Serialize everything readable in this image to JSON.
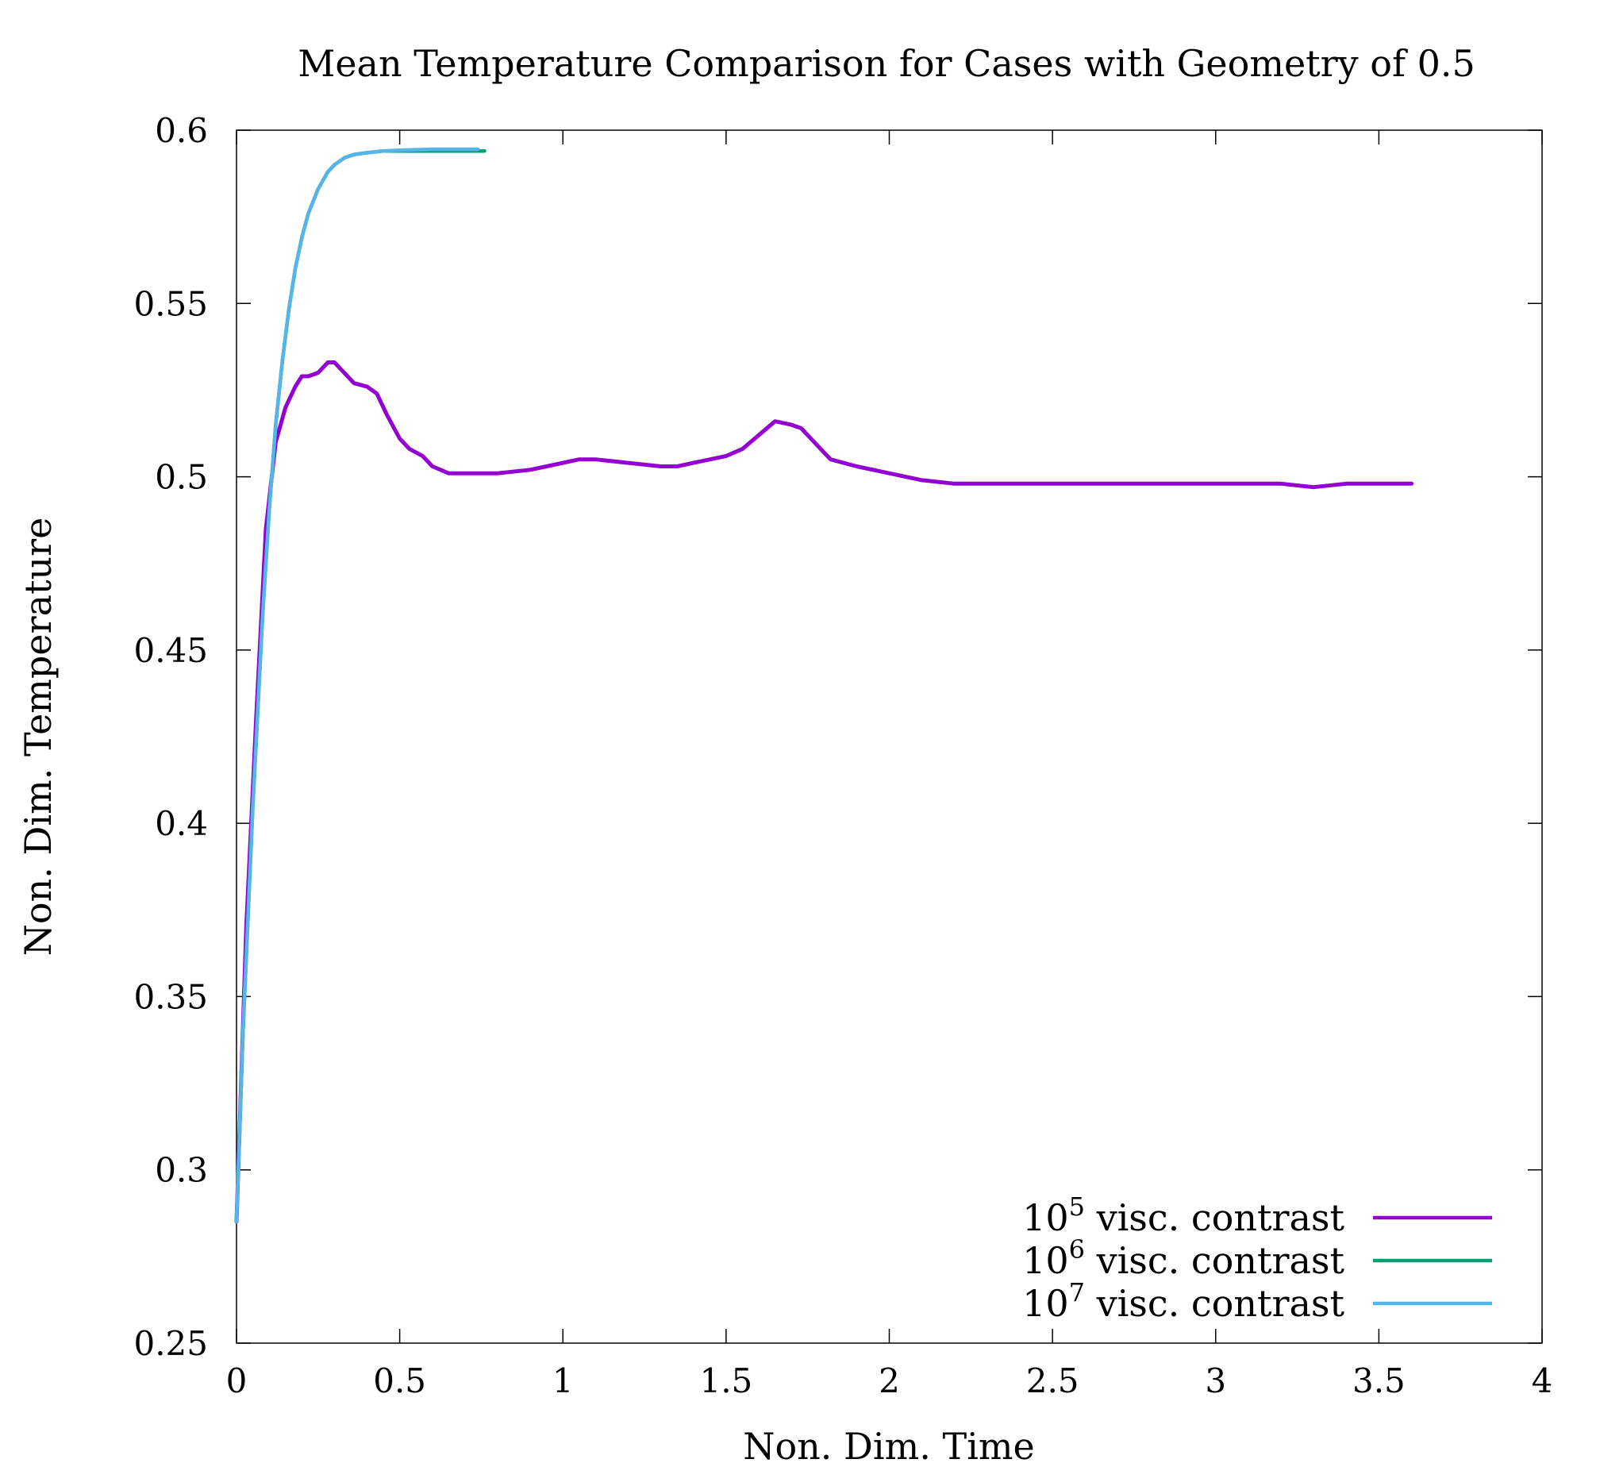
{
  "chart_data": {
    "type": "line",
    "title": "Mean Temperature Comparison for Cases with Geometry of 0.5",
    "xlabel": "Non. Dim. Time",
    "ylabel": "Non. Dim. Temperature",
    "xlim": [
      0,
      4
    ],
    "ylim": [
      0.25,
      0.6
    ],
    "xticks": [
      0,
      0.5,
      1,
      1.5,
      2,
      2.5,
      3,
      3.5,
      4
    ],
    "xtick_labels": [
      "0",
      "0.5",
      "1",
      "1.5",
      "2",
      "2.5",
      "3",
      "3.5",
      "4"
    ],
    "yticks": [
      0.25,
      0.3,
      0.35,
      0.4,
      0.45,
      0.5,
      0.55,
      0.6
    ],
    "ytick_labels": [
      "0.25",
      "0.3",
      "0.35",
      "0.4",
      "0.45",
      "0.5",
      "0.55",
      "0.6"
    ],
    "grid": false,
    "legend_position": "bottom-right",
    "series": [
      {
        "name_base": "10",
        "name_exp": "5",
        "name_rest": " visc. contrast",
        "color": "#9400d3",
        "x": [
          0,
          0.03,
          0.06,
          0.09,
          0.12,
          0.15,
          0.18,
          0.2,
          0.22,
          0.25,
          0.28,
          0.3,
          0.33,
          0.36,
          0.4,
          0.43,
          0.46,
          0.5,
          0.53,
          0.57,
          0.6,
          0.65,
          0.7,
          0.8,
          0.9,
          0.95,
          1.0,
          1.05,
          1.1,
          1.2,
          1.3,
          1.35,
          1.4,
          1.5,
          1.55,
          1.6,
          1.65,
          1.7,
          1.73,
          1.78,
          1.82,
          1.9,
          2.0,
          2.1,
          2.2,
          2.3,
          2.4,
          2.5,
          2.6,
          2.7,
          2.8,
          2.9,
          3.0,
          3.1,
          3.2,
          3.3,
          3.4,
          3.5,
          3.6
        ],
        "y": [
          0.285,
          0.37,
          0.43,
          0.485,
          0.51,
          0.52,
          0.526,
          0.529,
          0.529,
          0.53,
          0.533,
          0.533,
          0.53,
          0.527,
          0.526,
          0.524,
          0.518,
          0.511,
          0.508,
          0.506,
          0.503,
          0.501,
          0.501,
          0.501,
          0.502,
          0.503,
          0.504,
          0.505,
          0.505,
          0.504,
          0.503,
          0.503,
          0.504,
          0.506,
          0.508,
          0.512,
          0.516,
          0.515,
          0.514,
          0.509,
          0.505,
          0.503,
          0.501,
          0.499,
          0.498,
          0.498,
          0.498,
          0.498,
          0.498,
          0.498,
          0.498,
          0.498,
          0.498,
          0.498,
          0.498,
          0.497,
          0.498,
          0.498,
          0.498
        ]
      },
      {
        "name_base": "10",
        "name_exp": "6",
        "name_rest": " visc. contrast",
        "color": "#009e73",
        "x": [
          0,
          0.02,
          0.05,
          0.08,
          0.1,
          0.12,
          0.14,
          0.16,
          0.18,
          0.2,
          0.22,
          0.25,
          0.28,
          0.3,
          0.33,
          0.36,
          0.4,
          0.45,
          0.5,
          0.6,
          0.7,
          0.76
        ],
        "y": [
          0.285,
          0.34,
          0.405,
          0.46,
          0.49,
          0.515,
          0.533,
          0.548,
          0.56,
          0.569,
          0.576,
          0.583,
          0.588,
          0.59,
          0.592,
          0.593,
          0.5935,
          0.594,
          0.594,
          0.594,
          0.594,
          0.594
        ]
      },
      {
        "name_base": "10",
        "name_exp": "7",
        "name_rest": " visc. contrast",
        "color": "#56b4e9",
        "x": [
          0,
          0.02,
          0.05,
          0.08,
          0.1,
          0.12,
          0.14,
          0.16,
          0.18,
          0.2,
          0.22,
          0.25,
          0.28,
          0.3,
          0.33,
          0.36,
          0.4,
          0.45,
          0.5,
          0.6,
          0.74
        ],
        "y": [
          0.285,
          0.34,
          0.405,
          0.46,
          0.49,
          0.515,
          0.533,
          0.548,
          0.56,
          0.569,
          0.576,
          0.583,
          0.588,
          0.59,
          0.592,
          0.593,
          0.5935,
          0.594,
          0.5942,
          0.5945,
          0.5945
        ]
      }
    ]
  }
}
